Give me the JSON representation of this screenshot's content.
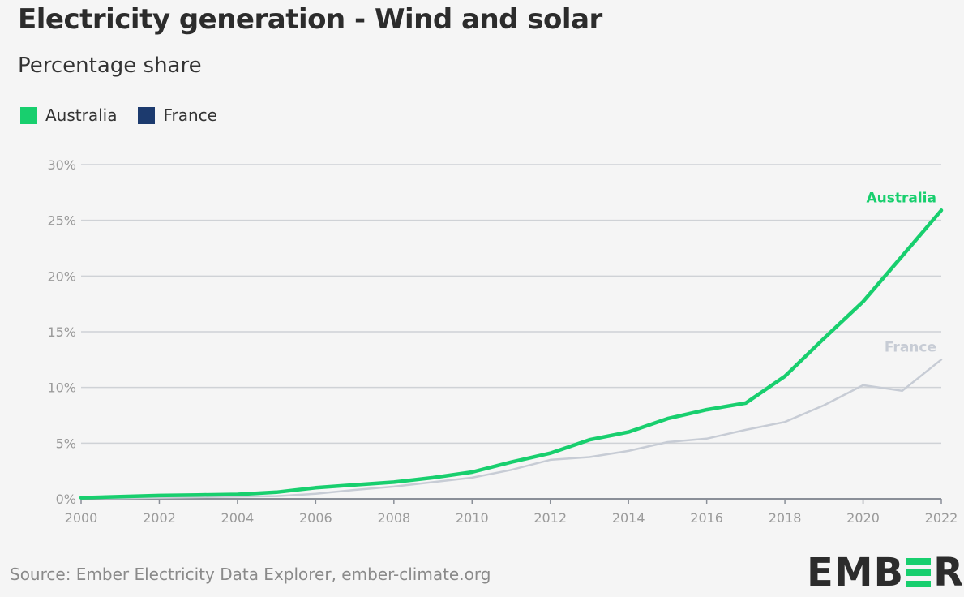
{
  "title": "Electricity generation - Wind and solar",
  "subtitle": "Percentage share",
  "legend": [
    {
      "label": "Australia",
      "color": "#18cf6e"
    },
    {
      "label": "France",
      "color": "#1c3a6e"
    }
  ],
  "source": "Source: Ember Electricity Data Explorer, ember-climate.org",
  "logo": {
    "text": "EMBER",
    "prefix": "EMB",
    "suffix": "R",
    "accent": "#18cf6e"
  },
  "chart_data": {
    "type": "line",
    "x": [
      2000,
      2001,
      2002,
      2003,
      2004,
      2005,
      2006,
      2007,
      2008,
      2009,
      2010,
      2011,
      2012,
      2013,
      2014,
      2015,
      2016,
      2017,
      2018,
      2019,
      2020,
      2021,
      2022
    ],
    "xticks": [
      2000,
      2002,
      2004,
      2006,
      2008,
      2010,
      2012,
      2014,
      2016,
      2018,
      2020,
      2022
    ],
    "yticks": [
      0,
      5,
      10,
      15,
      20,
      25,
      30
    ],
    "ytick_labels": [
      "0%",
      "5%",
      "10%",
      "15%",
      "20%",
      "25%",
      "30%"
    ],
    "ylim": [
      0,
      30
    ],
    "xlim": [
      2000,
      2022
    ],
    "grid": true,
    "series": [
      {
        "name": "Australia",
        "color": "#18cf6e",
        "values": [
          0.1,
          0.2,
          0.3,
          0.35,
          0.4,
          0.6,
          1.0,
          1.25,
          1.5,
          1.9,
          2.4,
          3.3,
          4.1,
          5.3,
          6.0,
          7.2,
          8.0,
          8.6,
          11.0,
          14.4,
          17.7,
          21.8,
          25.9
        ],
        "end_label": "Australia",
        "end_label_color": "#18cf6e"
      },
      {
        "name": "France",
        "color": "#c7ccd5",
        "values": [
          0.05,
          0.05,
          0.1,
          0.15,
          0.2,
          0.25,
          0.45,
          0.8,
          1.1,
          1.5,
          1.9,
          2.6,
          3.5,
          3.75,
          4.3,
          5.1,
          5.4,
          6.2,
          6.9,
          8.4,
          10.2,
          9.7,
          12.5
        ],
        "end_label": "France",
        "end_label_color": "#c7ccd5"
      }
    ]
  }
}
